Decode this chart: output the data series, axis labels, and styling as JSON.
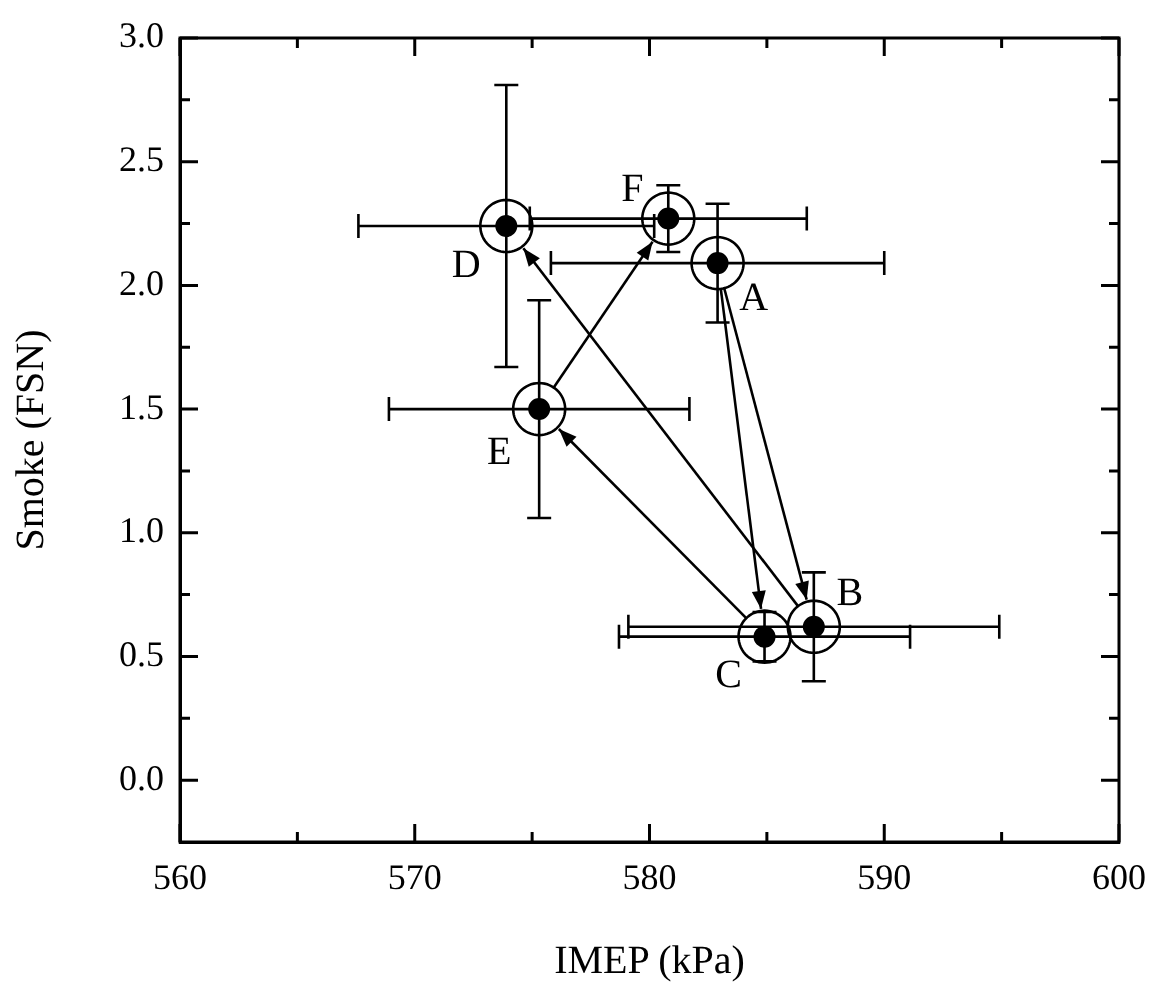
{
  "chart_data": {
    "type": "scatter",
    "xlabel": "IMEP (kPa)",
    "ylabel": "Smoke (FSN)",
    "x": [
      582.9,
      587.0,
      584.9,
      573.9,
      575.3,
      580.8
    ],
    "values": [
      2.09,
      0.62,
      0.58,
      2.24,
      1.5,
      2.27
    ],
    "errors": [
      0.24,
      0.22,
      0.1,
      0.57,
      0.44,
      0.135
    ],
    "xerrors": [
      7.1,
      7.9,
      6.2,
      6.3,
      6.4,
      5.9
    ],
    "color": "#000000",
    "marker": "circle",
    "grid": false,
    "legend": false,
    "annotations": [
      {
        "text": "A",
        "x": 582.9,
        "y": 2.09
      },
      {
        "text": "B",
        "x": 587.0,
        "y": 0.62
      },
      {
        "text": "C",
        "x": 584.9,
        "y": 0.58
      },
      {
        "text": "D",
        "x": 573.9,
        "y": 2.24
      },
      {
        "text": "E",
        "x": 575.3,
        "y": 1.5
      },
      {
        "text": "F",
        "x": 580.8,
        "y": 2.27
      }
    ],
    "xlim": [
      560,
      600
    ],
    "xticks": [
      560,
      {
        "value": 565,
        "label": null
      },
      570,
      {
        "value": 575,
        "label": null
      },
      580,
      {
        "value": 585,
        "label": null
      },
      590,
      {
        "value": 595,
        "label": null
      },
      600
    ],
    "ylim": [
      -0.25,
      3.0
    ],
    "yticks": [
      {
        "value": 0,
        "label": "0.0"
      },
      {
        "value": 0.25,
        "label": null
      },
      {
        "value": 0.5,
        "label": "0.5"
      },
      {
        "value": 0.75,
        "label": null
      },
      {
        "value": 1,
        "label": "1.0"
      },
      {
        "value": 1.25,
        "label": null
      },
      {
        "value": 1.5,
        "label": "1.5"
      },
      {
        "value": 1.75,
        "label": null
      },
      {
        "value": 2,
        "label": "2.0"
      },
      {
        "value": 2.25,
        "label": null
      },
      {
        "value": 2.5,
        "label": "2.5"
      },
      {
        "value": 2.75,
        "label": null
      },
      {
        "value": 3,
        "label": "3.0"
      }
    ]
  }
}
